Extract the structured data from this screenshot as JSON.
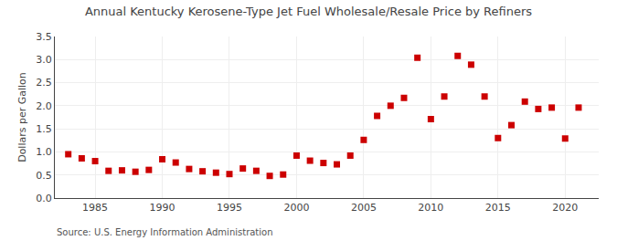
{
  "chart_data": {
    "type": "scatter",
    "title": "Annual Kentucky Kerosene-Type Jet Fuel Wholesale/Resale Price by Refiners",
    "ylabel": "Dollars per Gallon",
    "annotations": [
      "Source: U.S. Energy Information Administration"
    ],
    "x": [
      1983,
      1984,
      1985,
      1986,
      1987,
      1988,
      1989,
      1990,
      1991,
      1992,
      1993,
      1994,
      1995,
      1996,
      1997,
      1998,
      1999,
      2000,
      2001,
      2002,
      2003,
      2004,
      2005,
      2006,
      2007,
      2008,
      2009,
      2010,
      2011,
      2012,
      2013,
      2014,
      2015,
      2016,
      2017,
      2018,
      2019,
      2020,
      2021
    ],
    "values": [
      0.95,
      0.86,
      0.8,
      0.59,
      0.6,
      0.57,
      0.61,
      0.84,
      0.77,
      0.63,
      0.58,
      0.55,
      0.52,
      0.64,
      0.59,
      0.48,
      0.51,
      0.92,
      0.81,
      0.76,
      0.73,
      0.92,
      1.26,
      1.78,
      2.0,
      2.17,
      3.04,
      1.71,
      2.2,
      3.08,
      2.89,
      2.2,
      1.3,
      1.58,
      2.09,
      1.93,
      1.96,
      1.29,
      1.96
    ],
    "color": "#cc0000",
    "marker": "square",
    "xlim": [
      1982,
      2022.5
    ],
    "xticks": [
      1985,
      1990,
      1995,
      2000,
      2005,
      2010,
      2015,
      2020
    ],
    "ylim": [
      0.0,
      3.5
    ],
    "yticks": [
      {
        "value": 0.0,
        "label": "0.0"
      },
      0.5,
      {
        "value": 1.0,
        "label": "1.0"
      },
      1.5,
      {
        "value": 2.0,
        "label": "2.0"
      },
      2.5,
      {
        "value": 3.0,
        "label": "3.0"
      },
      3.5
    ],
    "grid": true
  }
}
